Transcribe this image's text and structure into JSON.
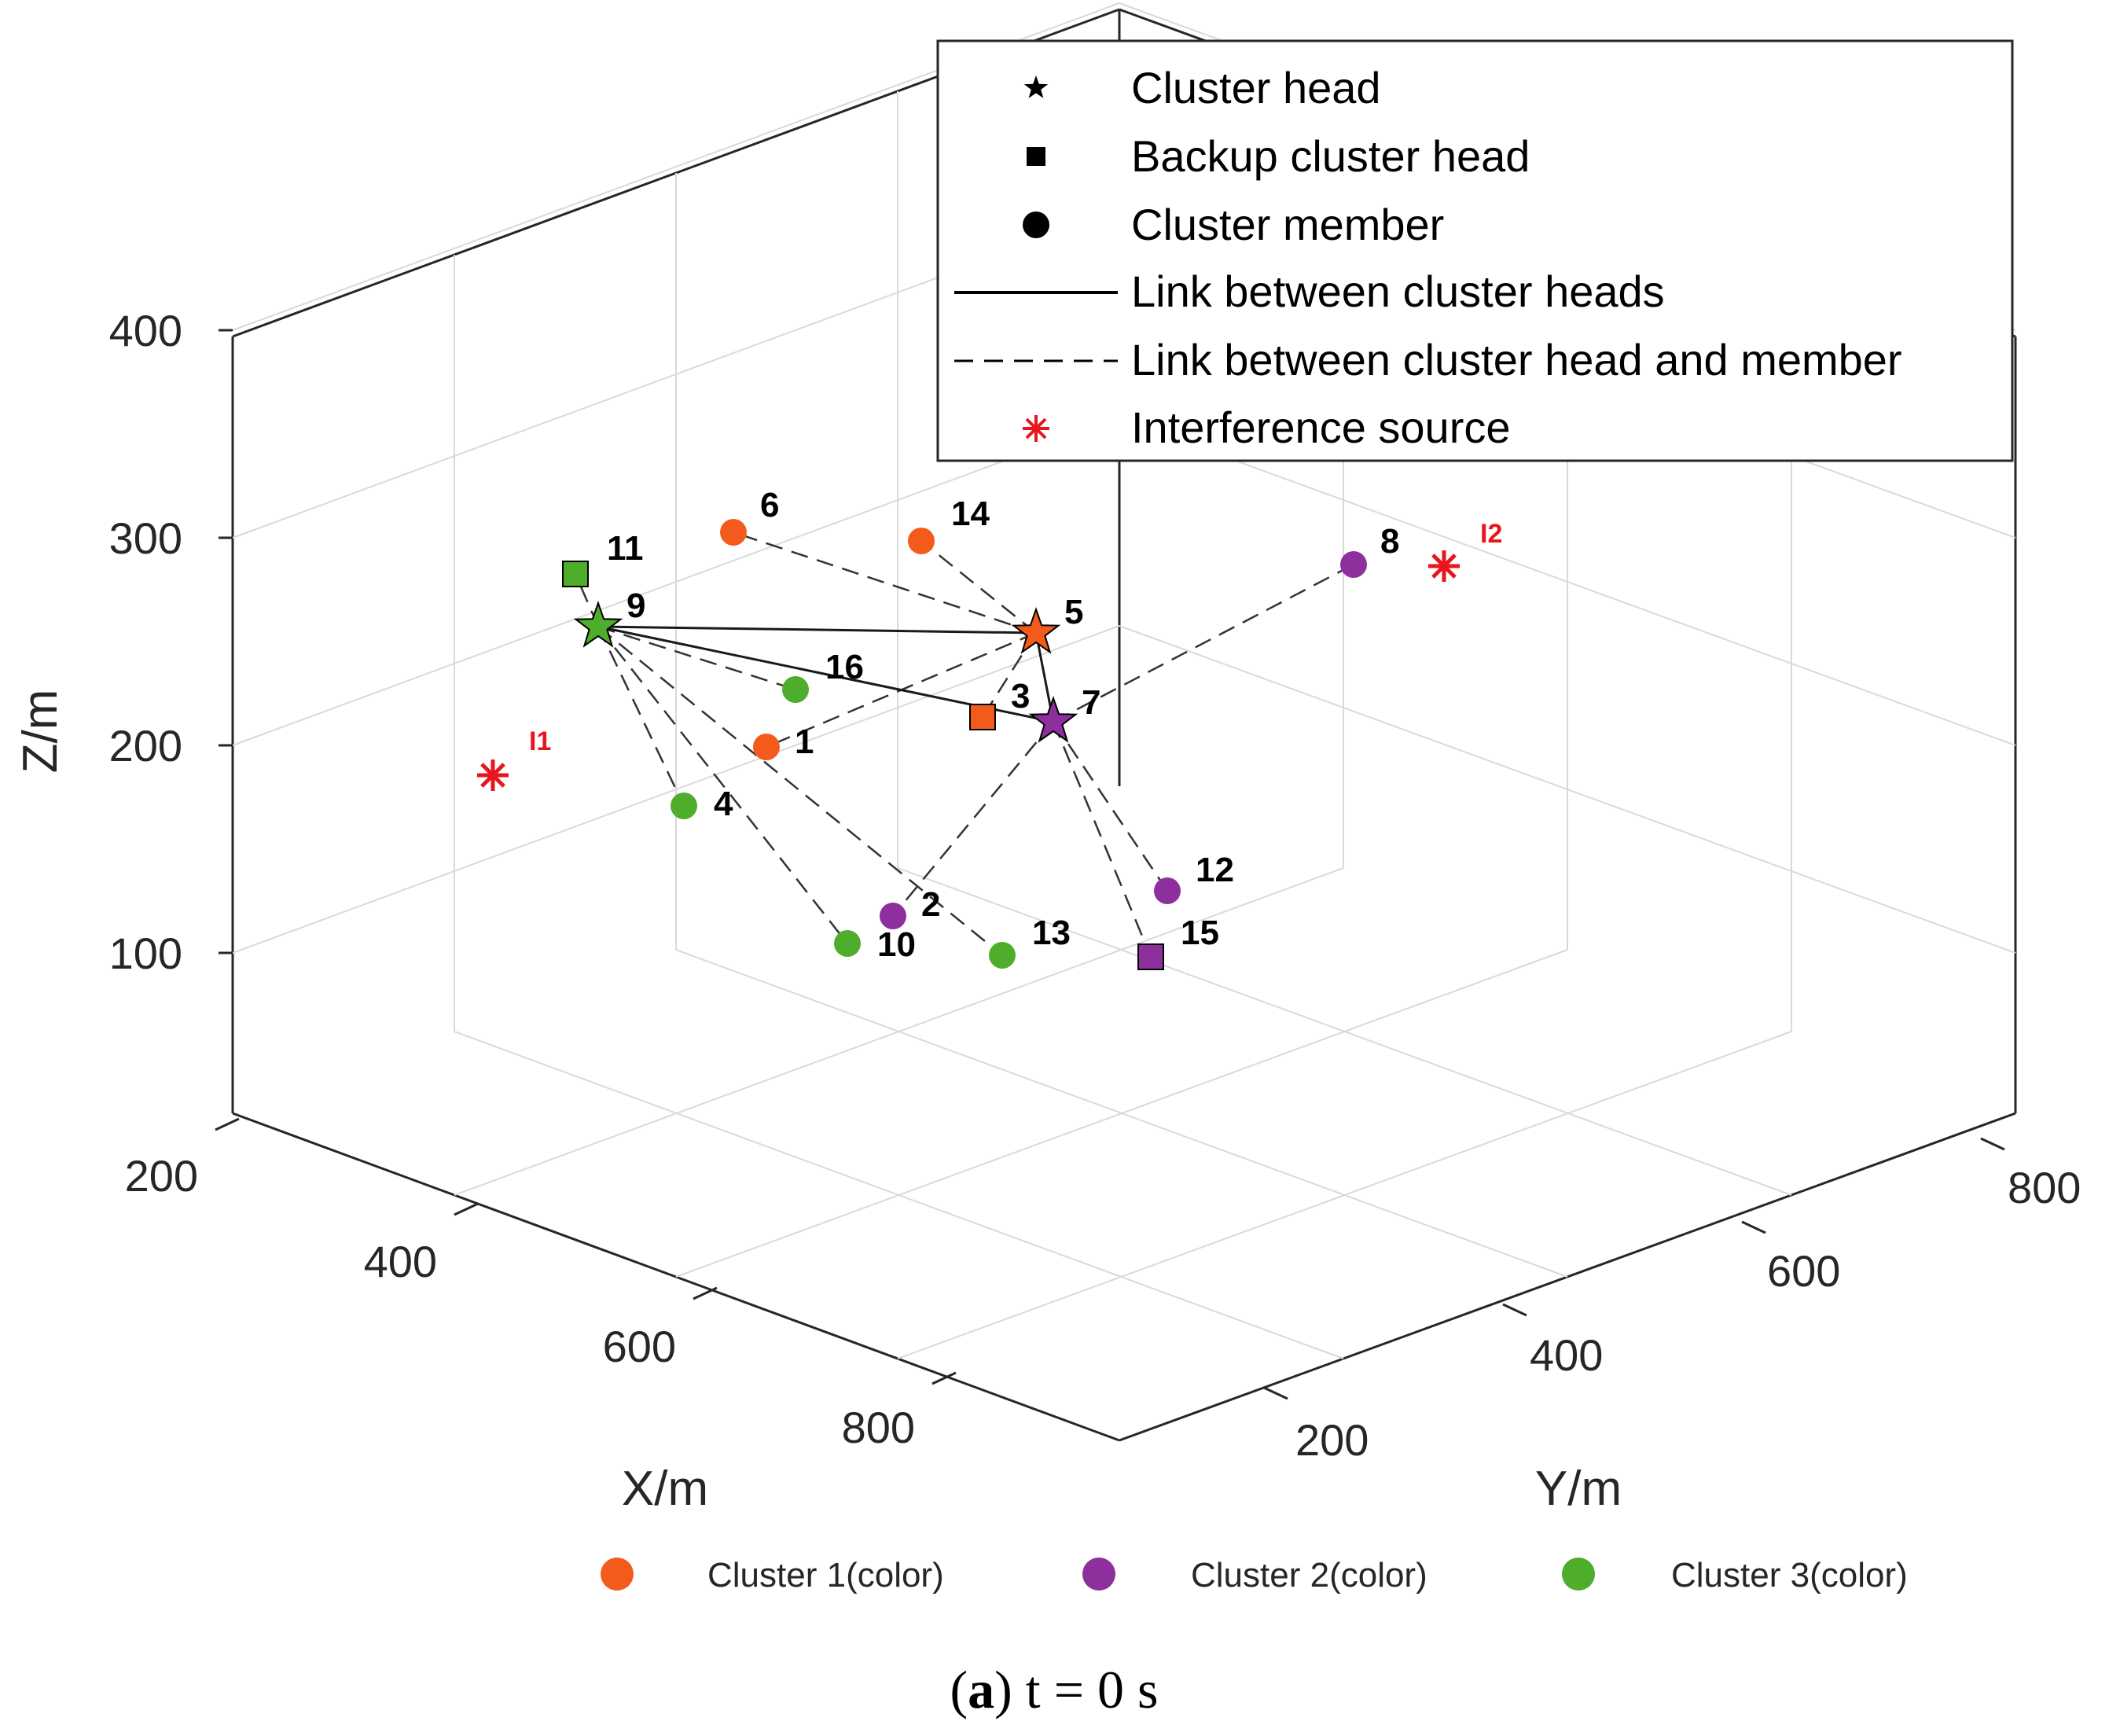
{
  "chart_data": {
    "type": "scatter3d",
    "caption": {
      "letter": "a",
      "text": "t = 0 s"
    },
    "axes": {
      "xlabel": "X/m",
      "ylabel": "Y/m",
      "zlabel": "Z/m",
      "x_ticks": [
        "200",
        "400",
        "600",
        "800"
      ],
      "y_ticks": [
        "200",
        "400",
        "600",
        "800"
      ],
      "z_ticks": [
        "100",
        "200",
        "300",
        "400"
      ],
      "grid": true
    },
    "legend": {
      "placement": "top-right",
      "items": [
        {
          "label": "Cluster head",
          "marker": "star"
        },
        {
          "label": "Backup cluster head",
          "marker": "square"
        },
        {
          "label": "Cluster member",
          "marker": "circle"
        },
        {
          "label": "Link between cluster heads",
          "marker": "solid-line"
        },
        {
          "label": "Link between cluster head and member",
          "marker": "dashed-line"
        },
        {
          "label": "Interference source",
          "marker": "asterisk"
        }
      ]
    },
    "clusters": [
      {
        "label": "Cluster 1(color)",
        "color": "#f35b1c"
      },
      {
        "label": "Cluster 2(color)",
        "color": "#8e2f9e"
      },
      {
        "label": "Cluster 3(color)",
        "color": "#4ead2a"
      }
    ],
    "nodes": [
      {
        "id": "1",
        "cluster": 1,
        "role": "member"
      },
      {
        "id": "2",
        "cluster": 2,
        "role": "member"
      },
      {
        "id": "3",
        "cluster": 1,
        "role": "backup"
      },
      {
        "id": "4",
        "cluster": 3,
        "role": "member"
      },
      {
        "id": "5",
        "cluster": 1,
        "role": "head"
      },
      {
        "id": "6",
        "cluster": 1,
        "role": "member"
      },
      {
        "id": "7",
        "cluster": 2,
        "role": "head"
      },
      {
        "id": "8",
        "cluster": 2,
        "role": "member"
      },
      {
        "id": "9",
        "cluster": 3,
        "role": "head"
      },
      {
        "id": "10",
        "cluster": 3,
        "role": "member"
      },
      {
        "id": "11",
        "cluster": 3,
        "role": "backup"
      },
      {
        "id": "12",
        "cluster": 2,
        "role": "member"
      },
      {
        "id": "13",
        "cluster": 3,
        "role": "member"
      },
      {
        "id": "14",
        "cluster": 1,
        "role": "member"
      },
      {
        "id": "15",
        "cluster": 2,
        "role": "backup"
      },
      {
        "id": "16",
        "cluster": 3,
        "role": "member"
      }
    ],
    "interference_sources": [
      {
        "id": "I1",
        "color": "#e8161c"
      },
      {
        "id": "I2",
        "color": "#e8161c"
      }
    ],
    "head_links": [
      [
        "9",
        "5"
      ],
      [
        "9",
        "7"
      ],
      [
        "5",
        "7"
      ]
    ],
    "member_links": [
      [
        "9",
        "11"
      ],
      [
        "9",
        "16"
      ],
      [
        "9",
        "4"
      ],
      [
        "9",
        "10"
      ],
      [
        "9",
        "13"
      ],
      [
        "5",
        "6"
      ],
      [
        "5",
        "14"
      ],
      [
        "5",
        "1"
      ],
      [
        "5",
        "3"
      ],
      [
        "7",
        "8"
      ],
      [
        "7",
        "2"
      ],
      [
        "7",
        "12"
      ],
      [
        "7",
        "15"
      ]
    ]
  }
}
